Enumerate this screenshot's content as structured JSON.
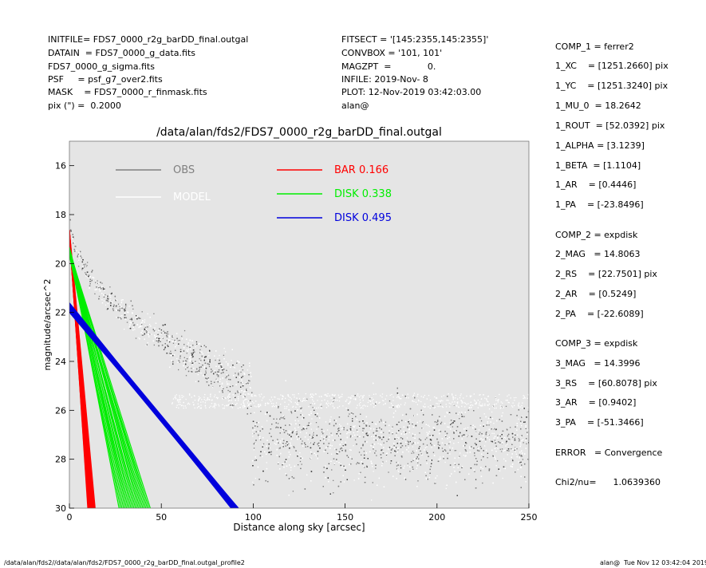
{
  "header_left": [
    "INITFILE= FDS7_0000_r2g_barDD_final.outgal",
    "DATAIN  = FDS7_0000_g_data.fits",
    "FDS7_0000_g_sigma.fits",
    "PSF     = psf_g7_over2.fits",
    "MASK    = FDS7_0000_r_finmask.fits",
    "pix (\") =  0.2000"
  ],
  "header_mid": [
    "FITSECT = '[145:2355,145:2355]'",
    "CONVBOX = '101, 101'",
    "MAGZPT  =             0.",
    "INFILE: 2019-Nov- 8",
    "PLOT: 12-Nov-2019 03:42:03.00",
    "alan@"
  ],
  "right_panel": [
    "COMP_1 = ferrer2",
    "1_XC    = [1251.2660] pix",
    "1_YC    = [1251.3240] pix",
    "1_MU_0  = 18.2642",
    "1_ROUT  = [52.0392] pix",
    "1_ALPHA = [3.1239]",
    "1_BETA  = [1.1104]",
    "1_AR    = [0.4446]",
    "1_PA    = [-23.8496]",
    "COMP_2 = expdisk",
    "2_MAG   = 14.8063",
    "2_RS    = [22.7501] pix",
    "2_AR    = [0.5249]",
    "2_PA    = [-22.6089]",
    "COMP_3 = expdisk",
    "3_MAG   = 14.3996",
    "3_RS    = [60.8078] pix",
    "3_AR    = [0.9402]",
    "3_PA    = [-51.3466]",
    "ERROR   = Convergence",
    "Chi2/nu=      1.0639360"
  ],
  "footer_left": "/data/alan/fds2//data/alan/fds2/FDS7_0000_r2g_barDD_final.outgal_profile2",
  "footer_right": "alan@  Tue Nov 12 03:42:04 2019",
  "colors": {
    "plot_bg": "#e5e5e5",
    "obs": "#808080",
    "model": "#ffffff",
    "bar": "#ff0000",
    "disk1": "#00ee00",
    "disk2": "#0000dd",
    "scatter_dark": "#404040"
  },
  "chart_data": {
    "type": "scatter",
    "title": "/data/alan/fds2/FDS7_0000_r2g_barDD_final.outgal",
    "xlabel": "Distance along sky [arcsec]",
    "ylabel": "magnitude/arcsec^2",
    "xlim": [
      0,
      250
    ],
    "ylim": [
      30,
      15.0
    ],
    "x_ticks": [
      0,
      50,
      100,
      150,
      200,
      250
    ],
    "y_ticks": [
      16,
      18,
      20,
      22,
      24,
      26,
      28,
      30
    ],
    "grid": false,
    "legend": [
      {
        "label": "OBS",
        "value": "",
        "color": "#808080"
      },
      {
        "label": "MODEL",
        "value": "",
        "color": "#ffffff"
      },
      {
        "label": "BAR",
        "value": "0.166",
        "color": "#ff0000"
      },
      {
        "label": "DISK",
        "value": "0.338",
        "color": "#00ee00"
      },
      {
        "label": "DISK",
        "value": "0.495",
        "color": "#0000dd"
      }
    ],
    "components": [
      {
        "name": "BAR",
        "mu_center": 18.8,
        "x_end_min": 10,
        "x_end_max": 14,
        "y_end": 30
      },
      {
        "name": "DISK",
        "mu_center": 19.5,
        "x_end_min": 27,
        "x_end_max": 44,
        "y_end": 30
      },
      {
        "name": "DISK",
        "mu_center": 21.8,
        "x_end_min": 88,
        "x_end_max": 92,
        "y_end": 30
      }
    ],
    "obs_profile": {
      "center_mag": 18.2,
      "sky_mag": 27.3,
      "sky_scatter_range": [
        25.5,
        30
      ]
    }
  }
}
